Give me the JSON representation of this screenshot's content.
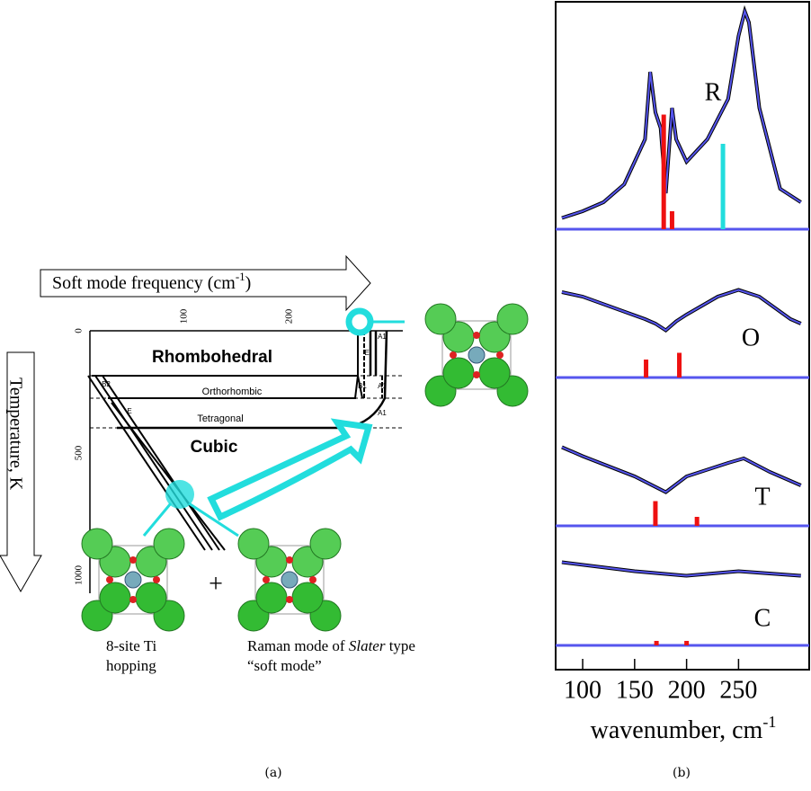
{
  "panel_a": {
    "arrow_title": "Soft mode frequency (cm",
    "arrow_title_sup": "-1",
    "arrow_title_end": ")",
    "temperature_label": "Temperature, K",
    "freq_ticks": [
      100,
      200
    ],
    "temp_ticks": [
      0,
      500,
      1000
    ],
    "phases": [
      "Rhombohedral",
      "Orthorhombic",
      "Tetragonal",
      "Cubic"
    ],
    "mode_labels": [
      "B2",
      "E",
      "E",
      "A1",
      "B1",
      "A1",
      "A1"
    ],
    "plus": "+",
    "caption_left": [
      "8-site Ti",
      "hopping"
    ],
    "caption_right": [
      "Raman mode of ",
      "Slater",
      " type",
      "“soft mode”"
    ],
    "panel_label": "(a)"
  },
  "chart_data": {
    "type": "line",
    "x_label": "wavenumber, cm",
    "x_label_sup": "-1",
    "xlim": [
      74,
      318
    ],
    "xticks": [
      100,
      150,
      200,
      250
    ],
    "panel_label": "(b)",
    "panels": [
      {
        "label": "R",
        "color": "#000000",
        "x": [
          80,
          100,
          120,
          140,
          160,
          165,
          170,
          175,
          180,
          186,
          190,
          200,
          220,
          240,
          250,
          256,
          260,
          270,
          290,
          310
        ],
        "values": [
          5,
          8,
          12,
          20,
          40,
          70,
          52,
          45,
          16,
          54,
          40,
          30,
          40,
          58,
          86,
          97,
          92,
          54,
          18,
          12
        ],
        "modes": [
          {
            "x": 178,
            "height": 51,
            "color": "#ee1111"
          },
          {
            "x": 186,
            "height": 8,
            "color": "#ee1111"
          },
          {
            "x": 235,
            "height": 38,
            "color": "#22dddd"
          }
        ]
      },
      {
        "label": "O",
        "color": "#000000",
        "x": [
          80,
          100,
          130,
          160,
          170,
          180,
          190,
          200,
          230,
          250,
          270,
          300,
          310
        ],
        "values": [
          38,
          36,
          31,
          26,
          24,
          21,
          25,
          28,
          36,
          39,
          36,
          26,
          24
        ],
        "modes": [
          {
            "x": 161,
            "height": 8,
            "color": "#ee1111"
          },
          {
            "x": 193,
            "height": 11,
            "color": "#ee1111"
          }
        ]
      },
      {
        "label": "T",
        "color": "#000000",
        "x": [
          80,
          100,
          150,
          180,
          200,
          240,
          255,
          280,
          310
        ],
        "values": [
          35,
          31,
          22,
          15,
          22,
          28,
          30,
          24,
          18
        ],
        "modes": [
          {
            "x": 170,
            "height": 11,
            "color": "#ee1111"
          },
          {
            "x": 210,
            "height": 4,
            "color": "#ee1111"
          }
        ]
      },
      {
        "label": "C",
        "color": "#000000",
        "x": [
          80,
          150,
          200,
          250,
          310
        ],
        "values": [
          37,
          33,
          31,
          33,
          31
        ],
        "modes": [
          {
            "x": 171,
            "height": 2,
            "color": "#ee1111"
          },
          {
            "x": 200,
            "height": 2,
            "color": "#ee1111"
          }
        ]
      }
    ]
  }
}
